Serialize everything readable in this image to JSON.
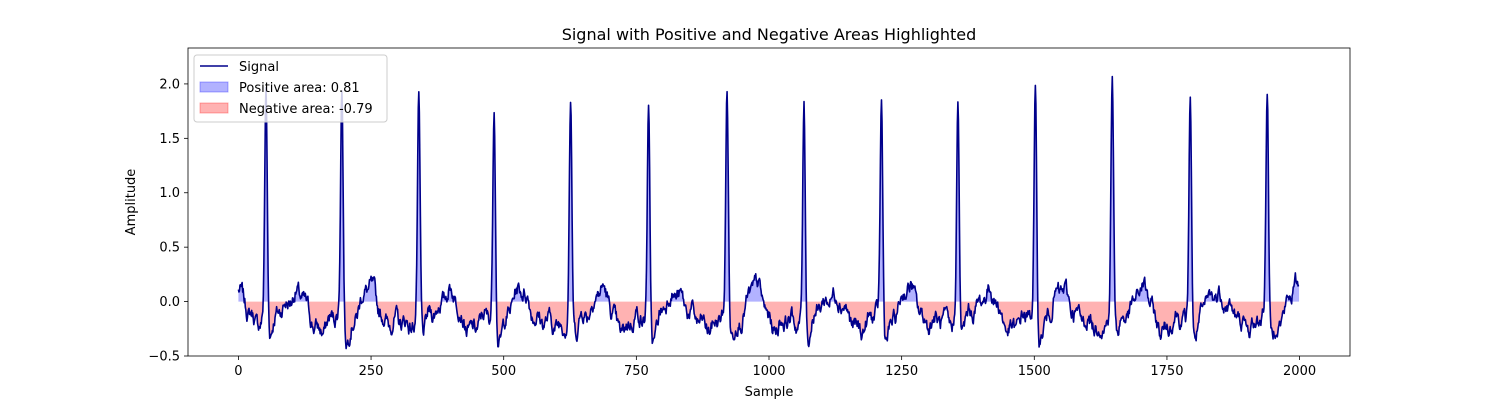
{
  "chart_data": {
    "type": "line",
    "title": "Signal with Positive and Negative Areas Highlighted",
    "xlabel": "Sample",
    "ylabel": "Amplitude",
    "xlim": [
      -95,
      2095
    ],
    "ylim": [
      -0.5,
      2.33
    ],
    "xticks": [
      0,
      250,
      500,
      750,
      1000,
      1250,
      1500,
      1750,
      2000
    ],
    "xtick_labels": [
      "0",
      "250",
      "500",
      "750",
      "1000",
      "1250",
      "1500",
      "1750",
      "2000"
    ],
    "yticks": [
      -0.5,
      0.0,
      0.5,
      1.0,
      1.5,
      2.0
    ],
    "ytick_labels": [
      "−0.5",
      "0.0",
      "0.5",
      "1.0",
      "1.5",
      "2.0"
    ],
    "grid": false,
    "legend_position": "top-left",
    "n_samples": 2000,
    "beats": [
      {
        "x": 52,
        "peak": 2.17
      },
      {
        "x": 195,
        "peak": 2.15
      },
      {
        "x": 340,
        "peak": 2.02
      },
      {
        "x": 482,
        "peak": 2.01
      },
      {
        "x": 626,
        "peak": 2.0
      },
      {
        "x": 773,
        "peak": 1.95
      },
      {
        "x": 921,
        "peak": 2.08
      },
      {
        "x": 1066,
        "peak": 2.02
      },
      {
        "x": 1212,
        "peak": 1.99
      },
      {
        "x": 1356,
        "peak": 2.0
      },
      {
        "x": 1502,
        "peak": 2.12
      },
      {
        "x": 1647,
        "peak": 2.22
      },
      {
        "x": 1794,
        "peak": 2.16
      },
      {
        "x": 1939,
        "peak": 2.1
      }
    ],
    "series": [
      {
        "name": "Signal",
        "kind": "line",
        "color": "#00008b"
      },
      {
        "name": "Positive area: 0.81",
        "kind": "fill",
        "color": "#0000ff",
        "opacity": 0.3
      },
      {
        "name": "Negative area: -0.79",
        "kind": "fill",
        "color": "#ff0000",
        "opacity": 0.3
      }
    ]
  }
}
